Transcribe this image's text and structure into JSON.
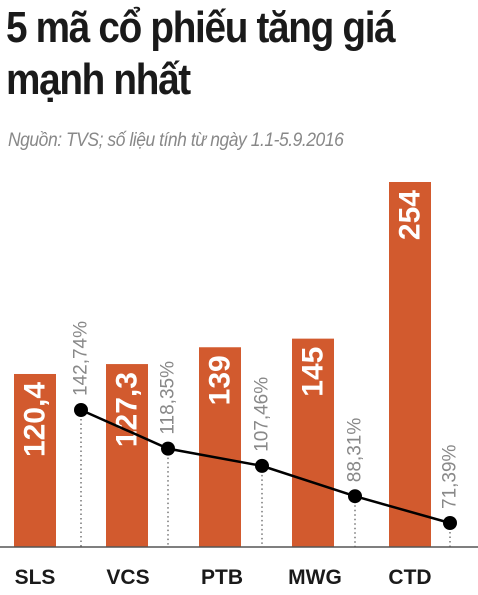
{
  "title": "5 mã cổ phiếu tăng giá mạnh nhất",
  "subtitle": "Nguồn: TVS; số liệu tính từ ngày 1.1-5.9.2016",
  "colors": {
    "bar": "#d25a2e",
    "bar_label": "#ffffff",
    "line": "#000000",
    "pct_label": "#888888",
    "axis": "#555555",
    "category": "#1a1a1a"
  },
  "chart_data": {
    "type": "bar",
    "categories": [
      "SLS",
      "VCS",
      "PTB",
      "MWG",
      "CTD"
    ],
    "series": [
      {
        "type": "bar",
        "values": [
          120.4,
          127.3,
          139,
          145,
          254
        ],
        "labels": [
          "120,4",
          "127,3",
          "139",
          "145",
          "254"
        ]
      },
      {
        "type": "line",
        "values": [
          142.74,
          118.35,
          107.46,
          88.31,
          71.39
        ],
        "labels": [
          "142,74%",
          "118,35%",
          "107,46%",
          "88,31%",
          "71,39%"
        ]
      }
    ],
    "grid": false,
    "legend": "none"
  }
}
